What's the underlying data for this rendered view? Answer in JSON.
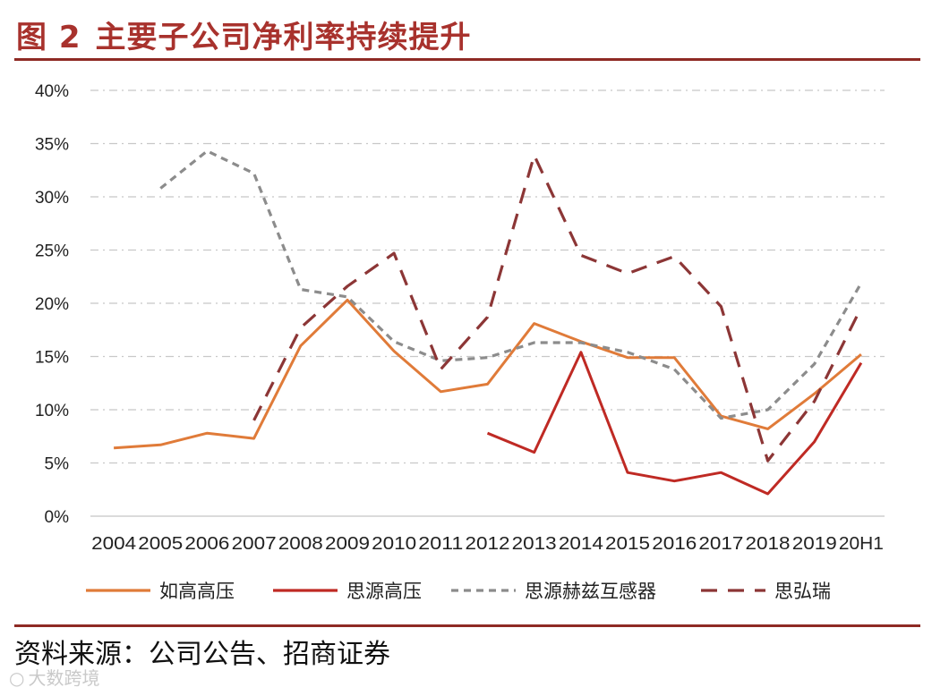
{
  "header": {
    "figure_number": "图 2",
    "title": "主要子公司净利率持续提升"
  },
  "chart_data": {
    "type": "line",
    "title": "",
    "xlabel": "",
    "ylabel": "",
    "categories": [
      "2004",
      "2005",
      "2006",
      "2007",
      "2008",
      "2009",
      "2010",
      "2011",
      "2012",
      "2013",
      "2014",
      "2015",
      "2016",
      "2017",
      "2018",
      "2019",
      "20H1"
    ],
    "y_ticks": [
      "0%",
      "5%",
      "10%",
      "15%",
      "20%",
      "25%",
      "30%",
      "35%",
      "40%"
    ],
    "ylim": [
      0,
      40
    ],
    "y_unit": "%",
    "grid": "horizontal dash-dot",
    "legend_position": "bottom",
    "series": [
      {
        "name": "如高高压",
        "color": "#e07b39",
        "dash": "solid",
        "values": [
          6.4,
          6.7,
          7.8,
          7.3,
          16.0,
          20.3,
          15.5,
          11.7,
          12.4,
          18.1,
          16.4,
          14.9,
          14.9,
          9.4,
          8.2,
          11.5,
          15.2
        ]
      },
      {
        "name": "思源高压",
        "color": "#bf2a24",
        "dash": "solid",
        "values": [
          null,
          null,
          null,
          null,
          null,
          null,
          null,
          null,
          7.8,
          6.0,
          15.4,
          4.1,
          3.3,
          4.1,
          2.1,
          7.0,
          14.4
        ]
      },
      {
        "name": "思源赫兹互感器",
        "color": "#8c8c8c",
        "dash": "short",
        "values": [
          null,
          30.8,
          34.3,
          32.2,
          21.3,
          20.6,
          16.4,
          14.6,
          14.9,
          16.3,
          16.3,
          15.4,
          13.8,
          9.2,
          10.0,
          14.3,
          21.9
        ]
      },
      {
        "name": "思弘瑞",
        "color": "#8c3636",
        "dash": "long",
        "values": [
          null,
          null,
          null,
          9.0,
          17.7,
          21.6,
          24.7,
          13.8,
          18.7,
          33.9,
          24.5,
          22.8,
          24.4,
          19.7,
          5.2,
          10.8,
          19.6
        ]
      }
    ]
  },
  "footer": {
    "source": "资料来源：公司公告、招商证券",
    "watermark": "大数跨境"
  }
}
